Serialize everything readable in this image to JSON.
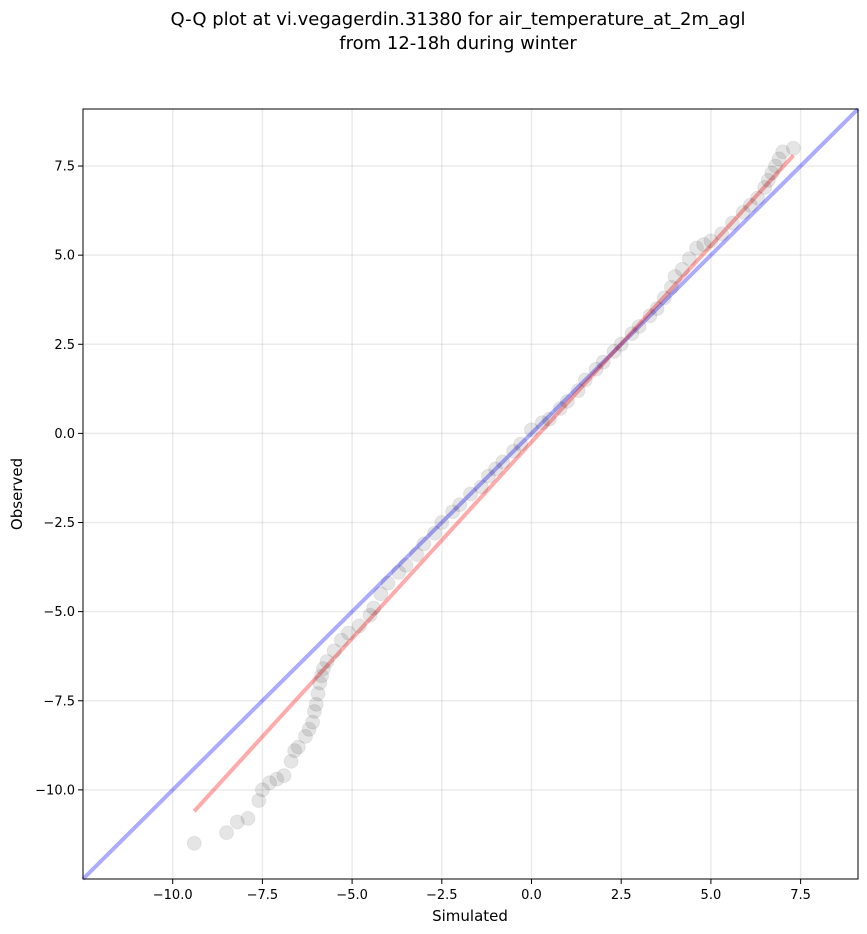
{
  "chart_data": {
    "type": "scatter",
    "title": "Q-Q plot at vi.vegagerdin.31380 for air_temperature_at_2m_agl",
    "subtitle": "from 12-18h during winter",
    "xlabel": "Simulated",
    "ylabel": "Observed",
    "xlim": [
      -12.5,
      9.1
    ],
    "ylim": [
      -12.5,
      9.1
    ],
    "grid": true,
    "x_ticks": [
      -10.0,
      -7.5,
      -5.0,
      -2.5,
      0.0,
      2.5,
      5.0,
      7.5
    ],
    "x_tick_labels": [
      "−10.0",
      "−7.5",
      "−5.0",
      "−2.5",
      "0.0",
      "2.5",
      "5.0",
      "7.5"
    ],
    "y_ticks": [
      -10.0,
      -7.5,
      -5.0,
      -2.5,
      0.0,
      2.5,
      5.0,
      7.5
    ],
    "y_tick_labels": [
      "−10.0",
      "−7.5",
      "−5.0",
      "−2.5",
      "0.0",
      "2.5",
      "5.0",
      "7.5"
    ],
    "colors": {
      "points": "#000000",
      "reference_line": "#0000ff",
      "fit_line": "#ff0000"
    },
    "reference_line": {
      "x": [
        -12.5,
        9.1
      ],
      "y": [
        -12.5,
        9.1
      ]
    },
    "fit_line": {
      "x": [
        -9.4,
        7.3
      ],
      "y": [
        -10.6,
        7.8
      ]
    },
    "series": [
      {
        "points": [
          [
            -9.4,
            -11.5
          ],
          [
            -8.5,
            -11.2
          ],
          [
            -8.2,
            -10.9
          ],
          [
            -7.9,
            -10.8
          ],
          [
            -7.6,
            -10.3
          ],
          [
            -7.5,
            -10.0
          ],
          [
            -7.3,
            -9.8
          ],
          [
            -7.1,
            -9.7
          ],
          [
            -6.9,
            -9.6
          ],
          [
            -6.7,
            -9.2
          ],
          [
            -6.6,
            -8.9
          ],
          [
            -6.5,
            -8.8
          ],
          [
            -6.3,
            -8.5
          ],
          [
            -6.2,
            -8.3
          ],
          [
            -6.1,
            -8.1
          ],
          [
            -6.05,
            -7.8
          ],
          [
            -6.0,
            -7.6
          ],
          [
            -5.95,
            -7.3
          ],
          [
            -5.9,
            -7.0
          ],
          [
            -5.85,
            -6.8
          ],
          [
            -5.8,
            -6.6
          ],
          [
            -5.7,
            -6.4
          ],
          [
            -5.5,
            -6.1
          ],
          [
            -5.3,
            -5.8
          ],
          [
            -5.1,
            -5.6
          ],
          [
            -4.8,
            -5.4
          ],
          [
            -4.5,
            -5.1
          ],
          [
            -4.4,
            -4.9
          ],
          [
            -4.2,
            -4.5
          ],
          [
            -4.0,
            -4.2
          ],
          [
            -3.7,
            -3.9
          ],
          [
            -3.5,
            -3.7
          ],
          [
            -3.2,
            -3.4
          ],
          [
            -3.0,
            -3.1
          ],
          [
            -2.7,
            -2.8
          ],
          [
            -2.5,
            -2.5
          ],
          [
            -2.2,
            -2.2
          ],
          [
            -2.0,
            -2.0
          ],
          [
            -1.7,
            -1.7
          ],
          [
            -1.4,
            -1.5
          ],
          [
            -1.2,
            -1.2
          ],
          [
            -1.0,
            -1.0
          ],
          [
            -0.8,
            -0.8
          ],
          [
            -0.5,
            -0.5
          ],
          [
            -0.3,
            -0.3
          ],
          [
            0.0,
            0.1
          ],
          [
            0.3,
            0.3
          ],
          [
            0.5,
            0.4
          ],
          [
            0.8,
            0.7
          ],
          [
            1.0,
            0.9
          ],
          [
            1.3,
            1.2
          ],
          [
            1.5,
            1.5
          ],
          [
            1.8,
            1.8
          ],
          [
            2.0,
            2.0
          ],
          [
            2.3,
            2.3
          ],
          [
            2.5,
            2.5
          ],
          [
            2.8,
            2.8
          ],
          [
            3.0,
            3.0
          ],
          [
            3.3,
            3.3
          ],
          [
            3.5,
            3.5
          ],
          [
            3.7,
            3.8
          ],
          [
            3.9,
            4.1
          ],
          [
            4.0,
            4.4
          ],
          [
            4.2,
            4.6
          ],
          [
            4.4,
            4.9
          ],
          [
            4.6,
            5.2
          ],
          [
            4.8,
            5.3
          ],
          [
            5.0,
            5.4
          ],
          [
            5.3,
            5.6
          ],
          [
            5.6,
            5.9
          ],
          [
            5.9,
            6.2
          ],
          [
            6.1,
            6.4
          ],
          [
            6.3,
            6.6
          ],
          [
            6.5,
            6.9
          ],
          [
            6.6,
            7.1
          ],
          [
            6.7,
            7.3
          ],
          [
            6.8,
            7.5
          ],
          [
            6.9,
            7.7
          ],
          [
            7.0,
            7.9
          ],
          [
            7.3,
            8.0
          ]
        ]
      }
    ]
  }
}
